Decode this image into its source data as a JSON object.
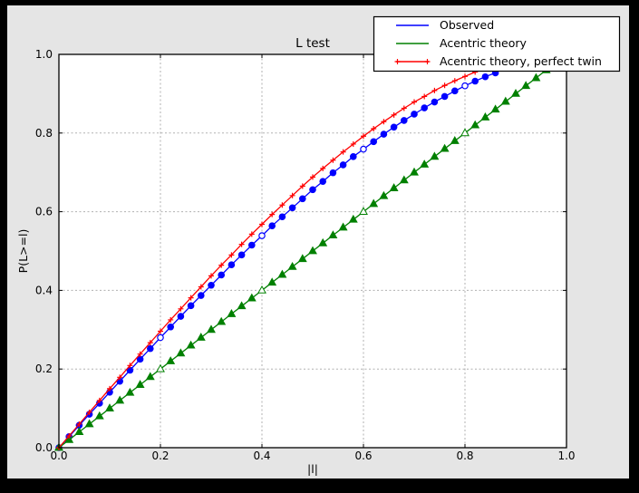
{
  "window": {
    "outer_background": "#000000",
    "figure_background": "#e5e5e5",
    "plot_background": "#ffffff",
    "grid_color": "#b0b0b0",
    "frame_color": "#000000"
  },
  "chart_data": {
    "type": "line",
    "title": "L test",
    "xlabel": "|l|",
    "ylabel": "P(L>=l)",
    "xlim": [
      0.0,
      1.0
    ],
    "ylim": [
      0.0,
      1.0
    ],
    "xtick_labels": [
      "0.0",
      "0.2",
      "0.4",
      "0.6",
      "0.8",
      "1.0"
    ],
    "ytick_labels": [
      "0.0",
      "0.2",
      "0.4",
      "0.6",
      "0.8",
      "1.0"
    ],
    "grid": true,
    "grid_style": "dashed",
    "legend_position": "upper right, overlapping plot top-right corner",
    "series": [
      {
        "name": "Observed",
        "color": "#0000ff",
        "marker": "circle",
        "legend_shows_marker": false,
        "x": [
          0.0,
          0.02,
          0.04,
          0.06,
          0.08,
          0.1,
          0.12,
          0.14,
          0.16,
          0.18,
          0.2,
          0.22,
          0.24,
          0.26,
          0.28,
          0.3,
          0.32,
          0.34,
          0.36,
          0.38,
          0.4,
          0.42,
          0.44,
          0.46,
          0.48,
          0.5,
          0.52,
          0.54,
          0.56,
          0.58,
          0.6,
          0.62,
          0.64,
          0.66,
          0.68,
          0.7,
          0.72,
          0.74,
          0.76,
          0.78,
          0.8,
          0.82,
          0.84,
          0.86
        ],
        "y": [
          0.0,
          0.028,
          0.057,
          0.085,
          0.113,
          0.141,
          0.169,
          0.197,
          0.225,
          0.252,
          0.28,
          0.307,
          0.334,
          0.361,
          0.387,
          0.413,
          0.439,
          0.465,
          0.49,
          0.515,
          0.539,
          0.564,
          0.587,
          0.61,
          0.633,
          0.656,
          0.677,
          0.699,
          0.719,
          0.74,
          0.759,
          0.778,
          0.797,
          0.815,
          0.832,
          0.848,
          0.864,
          0.879,
          0.893,
          0.907,
          0.92,
          0.932,
          0.943,
          0.953
        ]
      },
      {
        "name": "Acentric theory",
        "color": "#008000",
        "marker": "triangle",
        "legend_shows_marker": false,
        "x": [
          0.0,
          0.02,
          0.04,
          0.06,
          0.08,
          0.1,
          0.12,
          0.14,
          0.16,
          0.18,
          0.2,
          0.22,
          0.24,
          0.26,
          0.28,
          0.3,
          0.32,
          0.34,
          0.36,
          0.38,
          0.4,
          0.42,
          0.44,
          0.46,
          0.48,
          0.5,
          0.52,
          0.54,
          0.56,
          0.58,
          0.6,
          0.62,
          0.64,
          0.66,
          0.68,
          0.7,
          0.72,
          0.74,
          0.76,
          0.78,
          0.8,
          0.82,
          0.84,
          0.86,
          0.88,
          0.9,
          0.92,
          0.94,
          0.96,
          0.98,
          1.0
        ],
        "y": [
          0.0,
          0.02,
          0.04,
          0.06,
          0.08,
          0.1,
          0.12,
          0.14,
          0.16,
          0.18,
          0.2,
          0.22,
          0.24,
          0.26,
          0.28,
          0.3,
          0.32,
          0.34,
          0.36,
          0.38,
          0.4,
          0.42,
          0.44,
          0.46,
          0.48,
          0.5,
          0.52,
          0.54,
          0.56,
          0.58,
          0.6,
          0.62,
          0.64,
          0.66,
          0.68,
          0.7,
          0.72,
          0.74,
          0.76,
          0.78,
          0.8,
          0.82,
          0.84,
          0.86,
          0.88,
          0.9,
          0.92,
          0.94,
          0.96,
          0.98,
          1.0
        ]
      },
      {
        "name": "Acentric theory, perfect twin",
        "color": "#ff0000",
        "marker": "plus",
        "legend_shows_marker": true,
        "x": [
          0.0,
          0.02,
          0.04,
          0.06,
          0.08,
          0.1,
          0.12,
          0.14,
          0.16,
          0.18,
          0.2,
          0.22,
          0.24,
          0.26,
          0.28,
          0.3,
          0.32,
          0.34,
          0.36,
          0.38,
          0.4,
          0.42,
          0.44,
          0.46,
          0.48,
          0.5,
          0.52,
          0.54,
          0.56,
          0.58,
          0.6,
          0.62,
          0.64,
          0.66,
          0.68,
          0.7,
          0.72,
          0.74,
          0.76,
          0.78,
          0.8,
          0.82,
          0.84,
          0.86
        ],
        "y": [
          0.0,
          0.03,
          0.06,
          0.09,
          0.12,
          0.15,
          0.179,
          0.209,
          0.238,
          0.267,
          0.296,
          0.325,
          0.353,
          0.381,
          0.409,
          0.437,
          0.464,
          0.49,
          0.517,
          0.543,
          0.568,
          0.593,
          0.617,
          0.641,
          0.665,
          0.688,
          0.71,
          0.731,
          0.752,
          0.772,
          0.792,
          0.811,
          0.829,
          0.846,
          0.863,
          0.879,
          0.893,
          0.908,
          0.921,
          0.933,
          0.944,
          0.955,
          0.964,
          0.972
        ]
      }
    ]
  }
}
